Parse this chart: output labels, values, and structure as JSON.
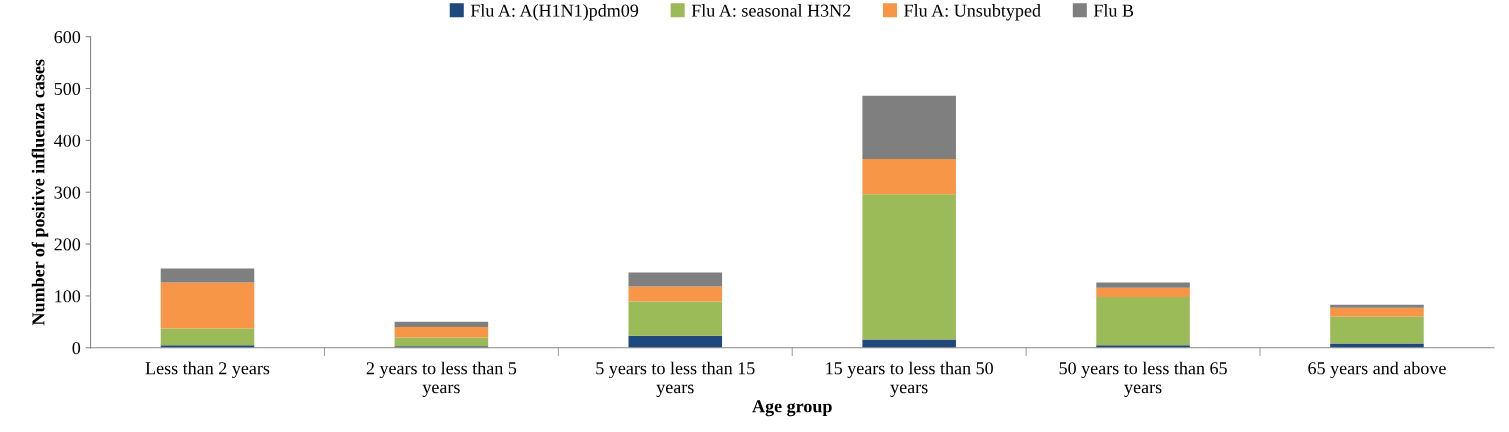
{
  "chart_data": {
    "type": "bar",
    "stacked": true,
    "xlabel": "Age group",
    "ylabel": "Number of positive influenza cases",
    "categories": [
      "Less than 2 years",
      "2 years to less than 5 years",
      "5 years to less than 15 years",
      "15 years to less than 50 years",
      "50 years to less than 65 years",
      "65 years and above"
    ],
    "series": [
      {
        "name": "Flu A: A(H1N1)pdm09",
        "color": "#1f497d",
        "values": [
          5,
          3,
          23,
          16,
          5,
          8
        ]
      },
      {
        "name": "Flu A: seasonal H3N2",
        "color": "#9bbb59",
        "values": [
          32,
          17,
          66,
          280,
          93,
          52
        ]
      },
      {
        "name": "Flu A: Unsubtyped",
        "color": "#f79646",
        "values": [
          89,
          20,
          29,
          68,
          18,
          17
        ]
      },
      {
        "name": "Flu B",
        "color": "#7f7f7f",
        "values": [
          27,
          10,
          27,
          122,
          10,
          6
        ]
      }
    ],
    "ylim": [
      0,
      600
    ],
    "yticks": [
      0,
      100,
      200,
      300,
      400,
      500,
      600
    ],
    "grid": false,
    "legend": "top"
  }
}
